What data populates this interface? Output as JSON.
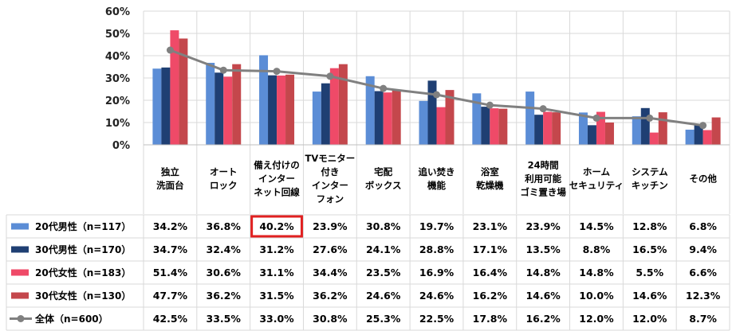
{
  "chart_data": {
    "type": "bar",
    "ylim": [
      0,
      60
    ],
    "y_ticks": [
      "0%",
      "10%",
      "20%",
      "30%",
      "40%",
      "50%",
      "60%"
    ],
    "categories": [
      [
        "独立",
        "洗面台"
      ],
      [
        "オート",
        "ロック"
      ],
      [
        "備え付けの",
        "インター",
        "ネット回線"
      ],
      [
        "TVモニター",
        "付き",
        "インター",
        "フォン"
      ],
      [
        "宅配",
        "ボックス"
      ],
      [
        "追い焚き",
        "機能"
      ],
      [
        "浴室",
        "乾燥機"
      ],
      [
        "24時間",
        "利用可能",
        "ゴミ置き場"
      ],
      [
        "ホーム",
        "セキュリティ"
      ],
      [
        "システム",
        "キッチン"
      ],
      [
        "その他"
      ]
    ],
    "series": [
      {
        "name": "20代男性（n=117）",
        "color": "#5b8dd6",
        "kind": "bar",
        "values": [
          34.2,
          36.8,
          40.2,
          23.9,
          30.8,
          19.7,
          23.1,
          23.9,
          14.5,
          12.8,
          6.8
        ],
        "labels": [
          "34.2%",
          "36.8%",
          "40.2%",
          "23.9%",
          "30.8%",
          "19.7%",
          "23.1%",
          "23.9%",
          "14.5%",
          "12.8%",
          "6.8%"
        ]
      },
      {
        "name": "30代男性（n=170）",
        "color": "#1f3f73",
        "kind": "bar",
        "values": [
          34.7,
          32.4,
          31.2,
          27.6,
          24.1,
          28.8,
          17.1,
          13.5,
          8.8,
          16.5,
          9.4
        ],
        "labels": [
          "34.7%",
          "32.4%",
          "31.2%",
          "27.6%",
          "24.1%",
          "28.8%",
          "17.1%",
          "13.5%",
          "8.8%",
          "16.5%",
          "9.4%"
        ]
      },
      {
        "name": "20代女性（n=183）",
        "color": "#ef4a68",
        "kind": "bar",
        "values": [
          51.4,
          30.6,
          31.1,
          34.4,
          23.5,
          16.9,
          16.4,
          14.8,
          14.8,
          5.5,
          6.6
        ],
        "labels": [
          "51.4%",
          "30.6%",
          "31.1%",
          "34.4%",
          "23.5%",
          "16.9%",
          "16.4%",
          "14.8%",
          "14.8%",
          "5.5%",
          "6.6%"
        ]
      },
      {
        "name": "30代女性（n=130）",
        "color": "#c4474c",
        "kind": "bar",
        "values": [
          47.7,
          36.2,
          31.5,
          36.2,
          24.6,
          24.6,
          16.2,
          14.6,
          10.0,
          14.6,
          12.3
        ],
        "labels": [
          "47.7%",
          "36.2%",
          "31.5%",
          "36.2%",
          "24.6%",
          "24.6%",
          "16.2%",
          "14.6%",
          "10.0%",
          "14.6%",
          "12.3%"
        ]
      },
      {
        "name": "全体（n=600）",
        "color": "#808080",
        "kind": "line",
        "values": [
          42.5,
          33.5,
          33.0,
          30.8,
          25.3,
          22.5,
          17.8,
          16.2,
          12.0,
          12.0,
          8.7
        ],
        "labels": [
          "42.5%",
          "33.5%",
          "33.0%",
          "30.8%",
          "25.3%",
          "22.5%",
          "17.8%",
          "16.2%",
          "12.0%",
          "12.0%",
          "8.7%"
        ]
      }
    ],
    "highlight": {
      "series": 0,
      "category": 2,
      "color": "#e02020"
    },
    "grid": true
  }
}
